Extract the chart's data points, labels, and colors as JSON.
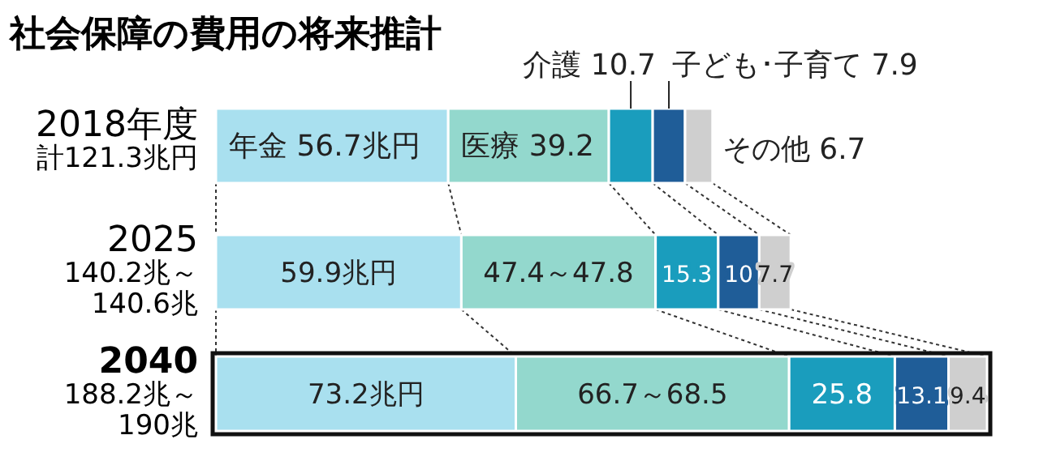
{
  "chart_data": {
    "type": "bar",
    "orientation": "horizontal",
    "stacked": true,
    "title": "社会保障の費用の将来推計",
    "categories": [
      "2018年度",
      "2025",
      "2040"
    ],
    "totals": [
      "計121.3兆円",
      "140.2兆～140.6兆",
      "188.2兆～190兆"
    ],
    "series": [
      {
        "name": "年金",
        "color": "#a9e0ef",
        "values": [
          56.7,
          59.9,
          73.2
        ],
        "value_labels": [
          "56.7兆円",
          "59.9兆円",
          "73.2兆円"
        ]
      },
      {
        "name": "医療",
        "color": "#93d8cd",
        "values": [
          39.2,
          47.4,
          66.7
        ],
        "value_labels": [
          "39.2",
          "47.4～47.8",
          "66.7～68.5"
        ]
      },
      {
        "name": "介護",
        "color": "#1a9dbd",
        "values": [
          10.7,
          15.3,
          25.8
        ],
        "value_labels": [
          "10.7",
          "15.3",
          "25.8"
        ]
      },
      {
        "name": "子ども･子育て",
        "color": "#1f5d98",
        "values": [
          7.9,
          10,
          13.1
        ],
        "value_labels": [
          "7.9",
          "10",
          "13.1"
        ]
      },
      {
        "name": "その他",
        "color": "#cfcfcf",
        "values": [
          6.7,
          7.7,
          9.4
        ],
        "value_labels": [
          "6.7",
          "7.7",
          "9.4"
        ]
      }
    ]
  }
}
